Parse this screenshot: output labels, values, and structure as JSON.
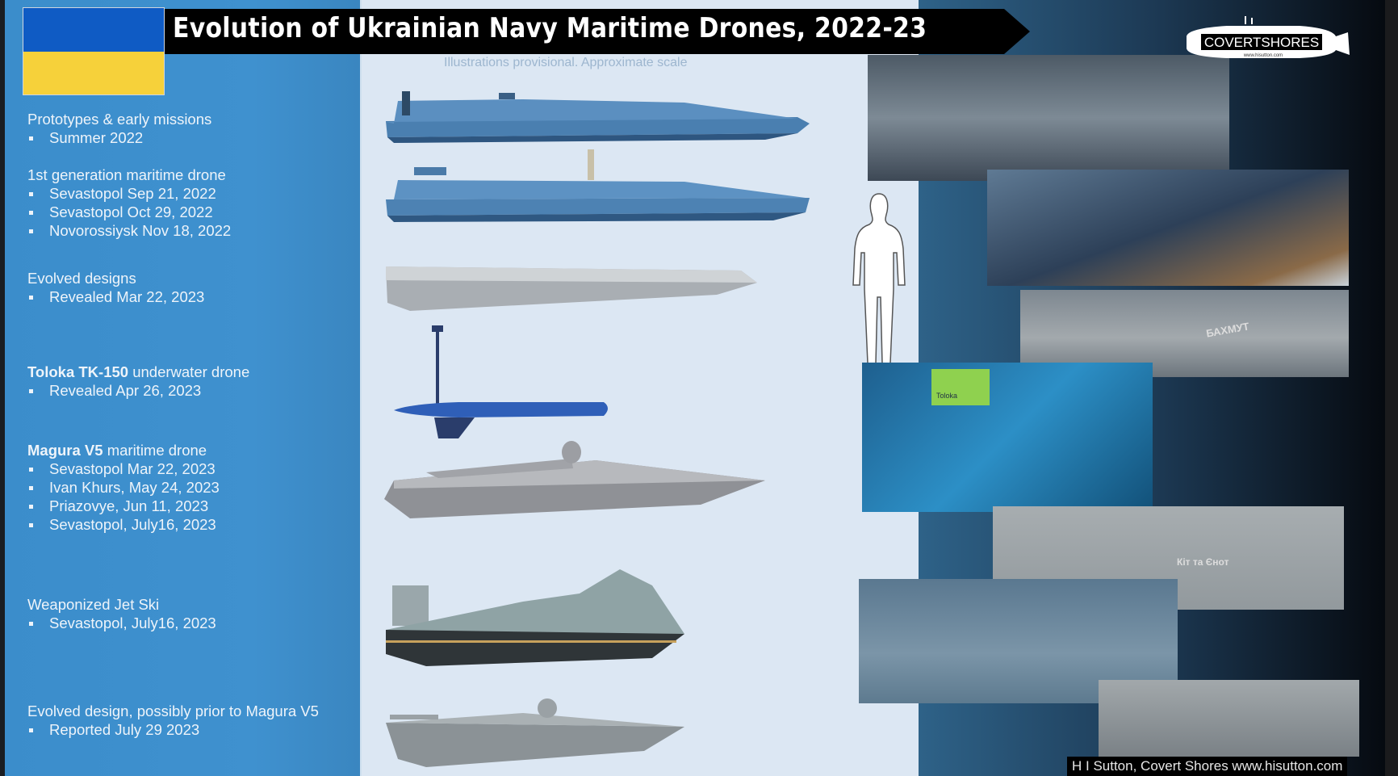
{
  "header": {
    "title": "Evolution of Ukrainian Navy Maritime Drones, 2022-23",
    "subtitle": "Illustrations provisional. Approximate scale"
  },
  "flag": {
    "top_color": "#0f5bc4",
    "bottom_color": "#f6d13a"
  },
  "logo": {
    "text": "COVERTSHORES",
    "url_text": "www.hisutton.com"
  },
  "timeline": [
    {
      "bold": "",
      "heading": "Prototypes & early missions",
      "items": [
        "Summer 2022"
      ]
    },
    {
      "bold": "",
      "heading": "1st generation maritime drone",
      "items": [
        "Sevastopol Sep 21, 2022",
        "Sevastopol Oct 29, 2022",
        "Novorossiysk Nov 18, 2022"
      ]
    },
    {
      "bold": "",
      "heading": "Evolved designs",
      "items": [
        "Revealed Mar 22, 2023"
      ]
    },
    {
      "bold": "Toloka TK-150",
      "heading": " underwater drone",
      "items": [
        "Revealed Apr 26, 2023"
      ]
    },
    {
      "bold": "Magura V5",
      "heading": " maritime drone",
      "items": [
        "Sevastopol Mar 22, 2023",
        "Ivan Khurs, May 24, 2023",
        "Priazovye, Jun 11, 2023",
        "Sevastopol, July16, 2023"
      ]
    },
    {
      "bold": "",
      "heading": "Weaponized Jet Ski",
      "items": [
        "Sevastopol, July16, 2023"
      ]
    },
    {
      "bold": "",
      "heading": "Evolved design, possibly prior to Magura V5",
      "items": [
        "Reported July 29 2023"
      ]
    }
  ],
  "photos": {
    "bakhmut_label": "БАХМУТ",
    "toloka_label": "Toloka",
    "kit_label": "Кіт та Єнот"
  },
  "credit": "H I Sutton, Covert Shores www.hisutton.com",
  "colors": {
    "left_panel": "#3d8fcc",
    "mid_panel": "#dce7f3",
    "title_bg": "#000000"
  }
}
